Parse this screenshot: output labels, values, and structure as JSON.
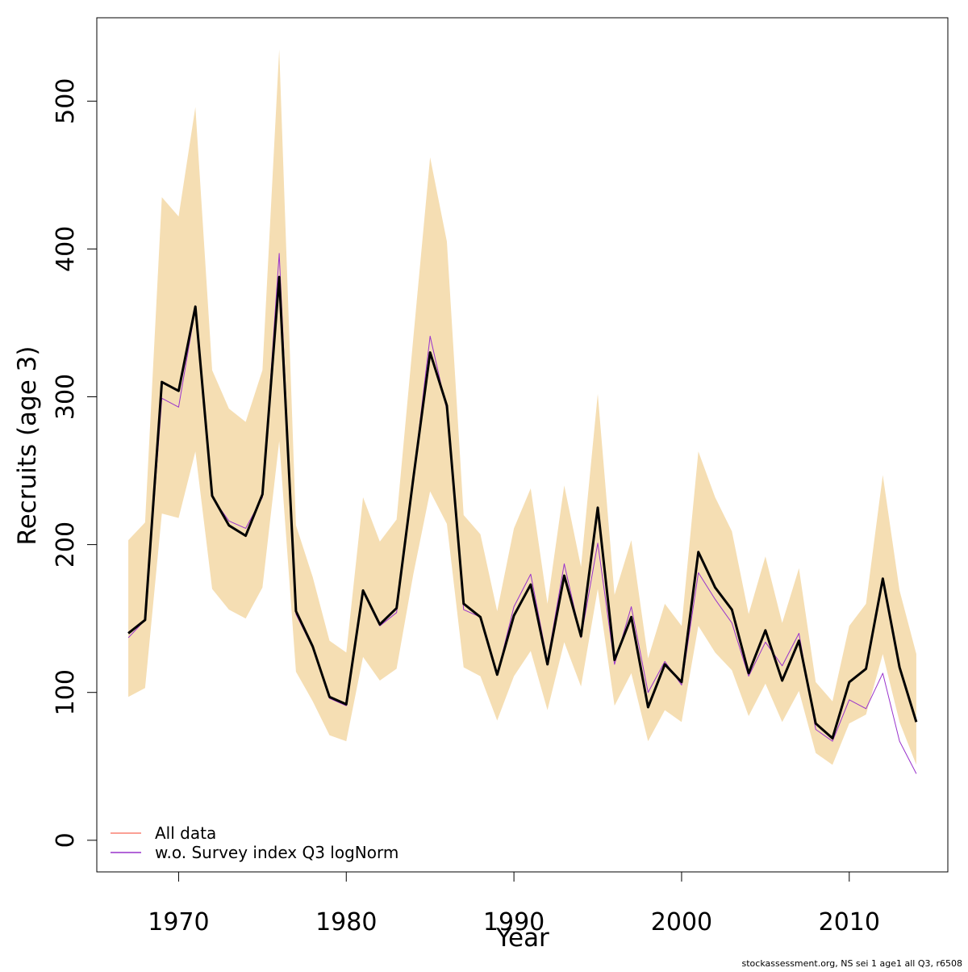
{
  "chart_data": {
    "type": "line",
    "xlabel": "Year",
    "ylabel": "Recruits (age 3)",
    "footer": "stockassessment.org, NS sei 1 age1 all Q3, r6508",
    "x": [
      1967,
      1968,
      1969,
      1970,
      1971,
      1972,
      1973,
      1974,
      1975,
      1976,
      1977,
      1978,
      1979,
      1980,
      1981,
      1982,
      1983,
      1984,
      1985,
      1986,
      1987,
      1988,
      1989,
      1990,
      1991,
      1992,
      1993,
      1994,
      1995,
      1996,
      1997,
      1998,
      1999,
      2000,
      2001,
      2002,
      2003,
      2004,
      2005,
      2006,
      2007,
      2008,
      2009,
      2010,
      2011,
      2012,
      2013,
      2014
    ],
    "band": {
      "color": "#f5deb3",
      "upper": [
        203,
        215,
        435,
        422,
        496,
        318,
        292,
        283,
        318,
        535,
        213,
        178,
        135,
        127,
        232,
        202,
        217,
        340,
        462,
        405,
        220,
        207,
        155,
        211,
        238,
        160,
        240,
        185,
        302,
        166,
        203,
        123,
        160,
        145,
        263,
        232,
        209,
        153,
        192,
        147,
        184,
        107,
        94,
        145,
        160,
        247,
        169,
        126
      ],
      "lower": [
        97,
        103,
        221,
        218,
        263,
        170,
        156,
        150,
        171,
        270,
        114,
        94,
        71,
        67,
        124,
        108,
        116,
        180,
        236,
        214,
        117,
        111,
        81,
        111,
        128,
        88,
        134,
        104,
        170,
        91,
        113,
        67,
        88,
        80,
        145,
        127,
        115,
        84,
        106,
        80,
        101,
        59,
        51,
        79,
        85,
        126,
        80,
        51
      ]
    },
    "series": [
      {
        "color": "#000000",
        "values": [
          140,
          149,
          310,
          304,
          361,
          233,
          213,
          206,
          234,
          381,
          155,
          131,
          97,
          92,
          169,
          146,
          157,
          245,
          330,
          294,
          160,
          151,
          112,
          152,
          173,
          119,
          179,
          138,
          225,
          122,
          151,
          90,
          119,
          107,
          195,
          171,
          156,
          113,
          142,
          108,
          135,
          79,
          69,
          107,
          116,
          177,
          117,
          80
        ]
      },
      {
        "name": "All data",
        "color": "#fa8072",
        "values": [
          140,
          149,
          310,
          304,
          361,
          233,
          213,
          206,
          234,
          381,
          155,
          131,
          97,
          92,
          169,
          146,
          157,
          245,
          330,
          294,
          160,
          151,
          112,
          152,
          173,
          119,
          179,
          138,
          225,
          122,
          151,
          90,
          119,
          107,
          195,
          171,
          156,
          113,
          142,
          108,
          135,
          79,
          69,
          107,
          116,
          177,
          117,
          80
        ]
      },
      {
        "name": "w.o. Survey index Q3 logNorm",
        "color": "#9932cc",
        "values": [
          137,
          149,
          299,
          293,
          360,
          232,
          216,
          211,
          232,
          397,
          153,
          130,
          96,
          91,
          168,
          145,
          154,
          245,
          341,
          291,
          156,
          151,
          112,
          158,
          180,
          121,
          187,
          137,
          201,
          119,
          158,
          100,
          121,
          105,
          181,
          163,
          147,
          111,
          134,
          118,
          140,
          75,
          67,
          95,
          89,
          113,
          67,
          45
        ]
      }
    ],
    "xlim": [
      1965.12,
      2015.88
    ],
    "ylim": [
      -21.4,
      556.4
    ],
    "xticks": [
      1970,
      1980,
      1990,
      2000,
      2010
    ],
    "yticks": [
      0,
      100,
      200,
      300,
      400,
      500
    ],
    "legend": "bottomleft"
  }
}
